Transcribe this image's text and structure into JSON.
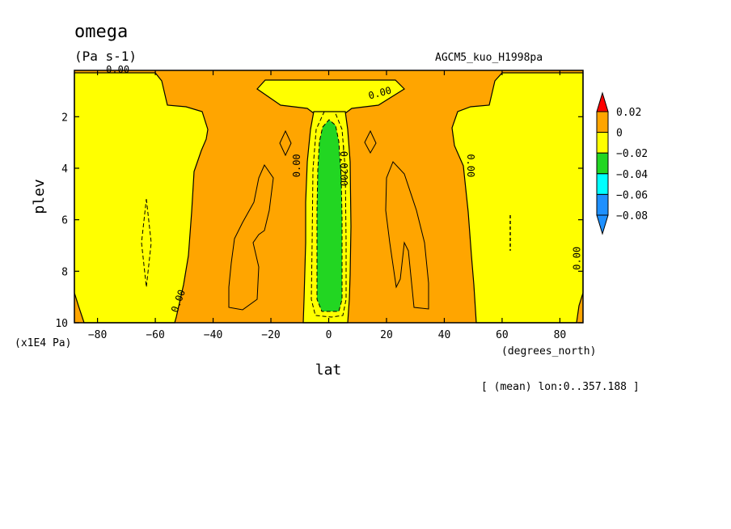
{
  "header": {
    "title": "omega",
    "units": "(Pa s-1)",
    "source": "AGCM5_kuo_H1998pa"
  },
  "footer": {
    "mean_note": "[ (mean) lon:0..357.188 ]"
  },
  "colors": {
    "orange": "#ffa500",
    "yellow": "#ffff00",
    "green": "#22d622",
    "cyan": "#00ffff",
    "blue": "#1e90ff",
    "red": "#ff0000"
  },
  "chart_data": {
    "type": "heatmap",
    "title": "omega",
    "units_label": "(Pa s-1)",
    "xlabel": "lat",
    "xunit_label": "(degrees_north)",
    "ylabel": "plev",
    "yunit_label": "(x1E4 Pa)",
    "xlim": [
      -88,
      88
    ],
    "ylim": [
      10,
      0.2
    ],
    "xticks": [
      -80,
      -60,
      -40,
      -20,
      0,
      20,
      40,
      60,
      80
    ],
    "yticks": [
      2,
      4,
      6,
      8,
      10
    ],
    "colorbar": {
      "levels": [
        "0.02",
        "0",
        "-0.02",
        "-0.04",
        "-0.06",
        "-0.08"
      ],
      "colors": [
        "#ffa500",
        "#ffff00",
        "#22d622",
        "#00ffff",
        "#1e90ff"
      ],
      "top_arrow_color": "#ff0000",
      "bottom_arrow_color": "#1e90ff"
    },
    "contour_labels": [
      {
        "text": "0.00",
        "lat": -73,
        "plev": 0.3,
        "rot": 0
      },
      {
        "text": "0.00",
        "lat": 18,
        "plev": 1.2,
        "rot": -15
      },
      {
        "text": "0.00",
        "lat": -10,
        "plev": 3.9,
        "rot": -90
      },
      {
        "text": "-0.0200",
        "lat": 4,
        "plev": 3.9,
        "rot": 90
      },
      {
        "text": "0.00",
        "lat": 48,
        "plev": 3.9,
        "rot": 90
      },
      {
        "text": "0.00",
        "lat": -51,
        "plev": 9.2,
        "rot": -70
      },
      {
        "text": "0.00",
        "lat": 87,
        "plev": 7.5,
        "rot": -90
      }
    ]
  }
}
